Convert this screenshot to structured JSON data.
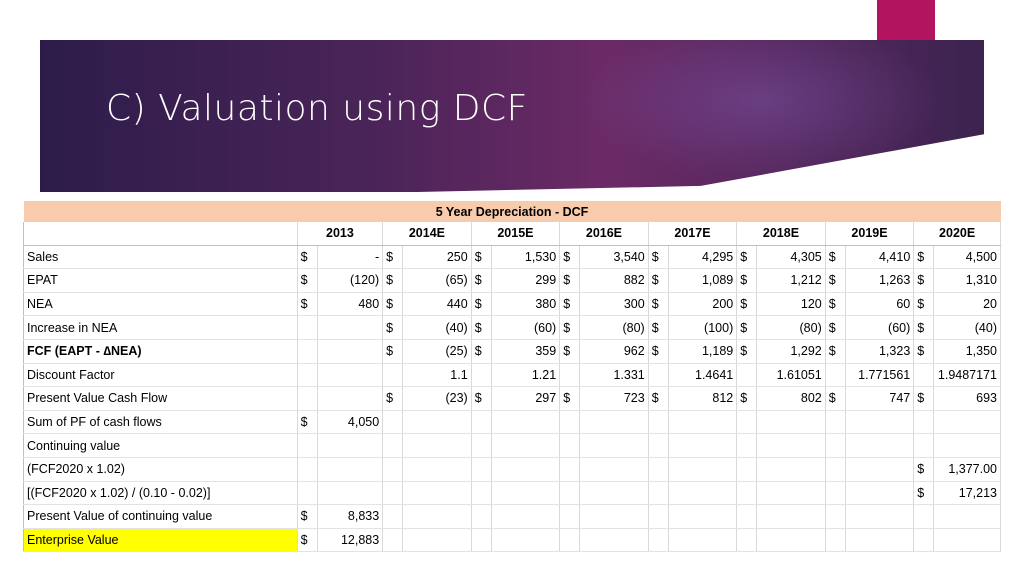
{
  "slide": {
    "title": "C) Valuation using DCF"
  },
  "table": {
    "caption": "5 Year Depreciation - DCF",
    "years": [
      "2013",
      "2014E",
      "2015E",
      "2016E",
      "2017E",
      "2018E",
      "2019E",
      "2020E"
    ],
    "rows": [
      {
        "label": "Sales",
        "cells": [
          [
            "$",
            "-"
          ],
          [
            "$",
            "250"
          ],
          [
            "$",
            "1,530"
          ],
          [
            "$",
            "3,540"
          ],
          [
            "$",
            "4,295"
          ],
          [
            "$",
            "4,305"
          ],
          [
            "$",
            "4,410"
          ],
          [
            "$",
            "4,500"
          ]
        ]
      },
      {
        "label": "EPAT",
        "cells": [
          [
            "$",
            "(120)"
          ],
          [
            "$",
            "(65)"
          ],
          [
            "$",
            "299"
          ],
          [
            "$",
            "882"
          ],
          [
            "$",
            "1,089"
          ],
          [
            "$",
            "1,212"
          ],
          [
            "$",
            "1,263"
          ],
          [
            "$",
            "1,310"
          ]
        ]
      },
      {
        "label": "NEA",
        "cells": [
          [
            "$",
            "480"
          ],
          [
            "$",
            "440"
          ],
          [
            "$",
            "380"
          ],
          [
            "$",
            "300"
          ],
          [
            "$",
            "200"
          ],
          [
            "$",
            "120"
          ],
          [
            "$",
            "60"
          ],
          [
            "$",
            "20"
          ]
        ]
      },
      {
        "label": "Increase in NEA",
        "cells": [
          [
            "",
            ""
          ],
          [
            "$",
            "(40)"
          ],
          [
            "$",
            "(60)"
          ],
          [
            "$",
            "(80)"
          ],
          [
            "$",
            "(100)"
          ],
          [
            "$",
            "(80)"
          ],
          [
            "$",
            "(60)"
          ],
          [
            "$",
            "(40)"
          ]
        ]
      },
      {
        "label": "FCF (EAPT - ∆NEA)",
        "cells": [
          [
            "",
            ""
          ],
          [
            "$",
            "(25)"
          ],
          [
            "$",
            "359"
          ],
          [
            "$",
            "962"
          ],
          [
            "$",
            "1,189"
          ],
          [
            "$",
            "1,292"
          ],
          [
            "$",
            "1,323"
          ],
          [
            "$",
            "1,350"
          ]
        ]
      },
      {
        "label": "Discount Factor",
        "cells": [
          [
            "",
            ""
          ],
          [
            "",
            "1.1"
          ],
          [
            "",
            "1.21"
          ],
          [
            "",
            "1.331"
          ],
          [
            "",
            "1.4641"
          ],
          [
            "",
            "1.61051"
          ],
          [
            "",
            "1.771561"
          ],
          [
            "",
            "1.9487171"
          ]
        ]
      },
      {
        "label": "Present Value Cash Flow",
        "cells": [
          [
            "",
            ""
          ],
          [
            "$",
            "(23)"
          ],
          [
            "$",
            "297"
          ],
          [
            "$",
            "723"
          ],
          [
            "$",
            "812"
          ],
          [
            "$",
            "802"
          ],
          [
            "$",
            "747"
          ],
          [
            "$",
            "693"
          ]
        ]
      },
      {
        "label": "Sum of PF of cash flows",
        "cells": [
          [
            "$",
            "4,050"
          ],
          [
            "",
            ""
          ],
          [
            "",
            ""
          ],
          [
            "",
            ""
          ],
          [
            "",
            ""
          ],
          [
            "",
            ""
          ],
          [
            "",
            ""
          ],
          [
            "",
            ""
          ]
        ]
      },
      {
        "label": "Continuing value",
        "cells": [
          [
            "",
            ""
          ],
          [
            "",
            ""
          ],
          [
            "",
            ""
          ],
          [
            "",
            ""
          ],
          [
            "",
            ""
          ],
          [
            "",
            ""
          ],
          [
            "",
            ""
          ],
          [
            "",
            ""
          ]
        ]
      },
      {
        "label": "(FCF2020 x 1.02)",
        "cells": [
          [
            "",
            ""
          ],
          [
            "",
            ""
          ],
          [
            "",
            ""
          ],
          [
            "",
            ""
          ],
          [
            "",
            ""
          ],
          [
            "",
            ""
          ],
          [
            "",
            ""
          ],
          [
            "$",
            "1,377.00"
          ]
        ]
      },
      {
        "label": "[(FCF2020 x 1.02) / (0.10 - 0.02)]",
        "cells": [
          [
            "",
            ""
          ],
          [
            "",
            ""
          ],
          [
            "",
            ""
          ],
          [
            "",
            ""
          ],
          [
            "",
            ""
          ],
          [
            "",
            ""
          ],
          [
            "",
            ""
          ],
          [
            "$",
            "17,213"
          ]
        ]
      },
      {
        "label": "Present Value of continuing value",
        "cells": [
          [
            "$",
            "8,833"
          ],
          [
            "",
            ""
          ],
          [
            "",
            ""
          ],
          [
            "",
            ""
          ],
          [
            "",
            ""
          ],
          [
            "",
            ""
          ],
          [
            "",
            ""
          ],
          [
            "",
            ""
          ]
        ]
      },
      {
        "label": "Enterprise Value",
        "cells": [
          [
            "$",
            "12,883"
          ],
          [
            "",
            ""
          ],
          [
            "",
            ""
          ],
          [
            "",
            ""
          ],
          [
            "",
            ""
          ],
          [
            "",
            ""
          ],
          [
            "",
            ""
          ],
          [
            "",
            ""
          ]
        ]
      }
    ]
  }
}
